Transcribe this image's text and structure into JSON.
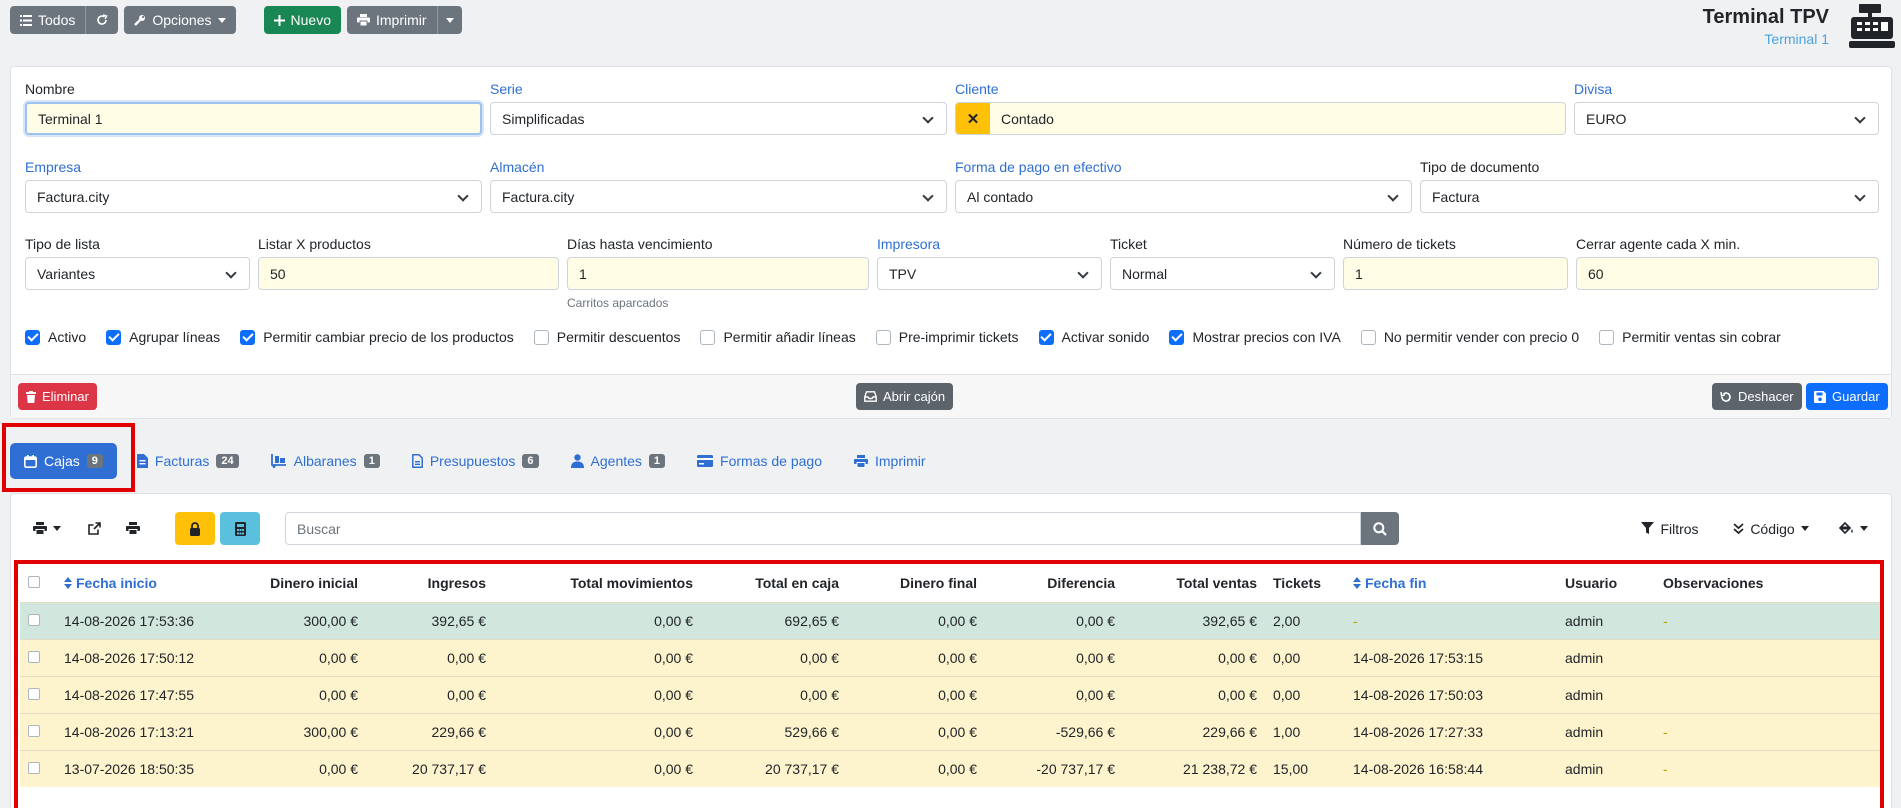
{
  "toolbar": {
    "todos_label": "Todos",
    "opciones_label": "Opciones",
    "nuevo_label": "Nuevo",
    "imprimir_label": "Imprimir"
  },
  "header": {
    "title": "Terminal TPV",
    "subtitle": "Terminal 1"
  },
  "form": {
    "nombre": {
      "label": "Nombre",
      "value": "Terminal 1"
    },
    "serie": {
      "label": "Serie",
      "value": "Simplificadas"
    },
    "cliente": {
      "label": "Cliente",
      "value": "Contado",
      "clear": "✕"
    },
    "divisa": {
      "label": "Divisa",
      "value": "EURO"
    },
    "empresa": {
      "label": "Empresa",
      "value": "Factura.city"
    },
    "almacen": {
      "label": "Almacén",
      "value": "Factura.city"
    },
    "forma_pago": {
      "label": "Forma de pago en efectivo",
      "value": "Al contado"
    },
    "tipo_documento": {
      "label": "Tipo de documento",
      "value": "Factura"
    },
    "tipo_lista": {
      "label": "Tipo de lista",
      "value": "Variantes"
    },
    "listar_productos": {
      "label": "Listar X productos",
      "value": "50"
    },
    "dias_vencimiento": {
      "label": "Días hasta vencimiento",
      "value": "1",
      "hint": "Carritos aparcados"
    },
    "impresora": {
      "label": "Impresora",
      "value": "TPV"
    },
    "ticket": {
      "label": "Ticket",
      "value": "Normal"
    },
    "num_tickets": {
      "label": "Número de tickets",
      "value": "1"
    },
    "cerrar_agente": {
      "label": "Cerrar agente cada X min.",
      "value": "60"
    },
    "checkboxes": [
      {
        "label": "Activo",
        "checked": true
      },
      {
        "label": "Agrupar líneas",
        "checked": true
      },
      {
        "label": "Permitir cambiar precio de los productos",
        "checked": true
      },
      {
        "label": "Permitir descuentos",
        "checked": false
      },
      {
        "label": "Permitir añadir líneas",
        "checked": false
      },
      {
        "label": "Pre-imprimir tickets",
        "checked": false
      },
      {
        "label": "Activar sonido",
        "checked": true
      },
      {
        "label": "Mostrar precios con IVA",
        "checked": true
      },
      {
        "label": "No permitir vender con precio 0",
        "checked": false
      },
      {
        "label": "Permitir ventas sin cobrar",
        "checked": false
      }
    ],
    "footer": {
      "eliminar": "Eliminar",
      "abrir_cajon": "Abrir cajón",
      "deshacer": "Deshacer",
      "guardar": "Guardar"
    }
  },
  "tabs": [
    {
      "label": "Cajas",
      "count": "9"
    },
    {
      "label": "Facturas",
      "count": "24"
    },
    {
      "label": "Albaranes",
      "count": "1"
    },
    {
      "label": "Presupuestos",
      "count": "6"
    },
    {
      "label": "Agentes",
      "count": "1"
    },
    {
      "label": "Formas de pago"
    },
    {
      "label": "Imprimir"
    }
  ],
  "list": {
    "search_placeholder": "Buscar",
    "filtros_label": "Filtros",
    "codigo_label": "Código",
    "columns": [
      "Fecha inicio",
      "Dinero inicial",
      "Ingresos",
      "Total movimientos",
      "Total en caja",
      "Dinero final",
      "Diferencia",
      "Total ventas",
      "Tickets",
      "Fecha fin",
      "Usuario",
      "Observaciones"
    ],
    "rows": [
      [
        "14-08-2026 17:53:36",
        "300,00 €",
        "392,65 €",
        "0,00 €",
        "692,65 €",
        "0,00 €",
        "0,00 €",
        "392,65 €",
        "2,00",
        "-",
        "admin",
        "-"
      ],
      [
        "14-08-2026 17:50:12",
        "0,00 €",
        "0,00 €",
        "0,00 €",
        "0,00 €",
        "0,00 €",
        "0,00 €",
        "0,00 €",
        "0,00",
        "14-08-2026 17:53:15",
        "admin",
        ""
      ],
      [
        "14-08-2026 17:47:55",
        "0,00 €",
        "0,00 €",
        "0,00 €",
        "0,00 €",
        "0,00 €",
        "0,00 €",
        "0,00 €",
        "0,00",
        "14-08-2026 17:50:03",
        "admin",
        ""
      ],
      [
        "14-08-2026 17:13:21",
        "300,00 €",
        "229,66 €",
        "0,00 €",
        "529,66 €",
        "0,00 €",
        "-529,66 €",
        "229,66 €",
        "1,00",
        "14-08-2026 17:27:33",
        "admin",
        "-"
      ],
      [
        "13-07-2026 18:50:35",
        "0,00 €",
        "20 737,17 €",
        "0,00 €",
        "20 737,17 €",
        "0,00 €",
        "-20 737,17 €",
        "21 238,72 €",
        "15,00",
        "14-08-2026 16:58:44",
        "admin",
        "-"
      ]
    ]
  },
  "colors": {
    "primary": "#2f6fd3",
    "success": "#198754",
    "danger": "#dc3545",
    "warning": "#ffc107",
    "highlight": "#e00000"
  }
}
